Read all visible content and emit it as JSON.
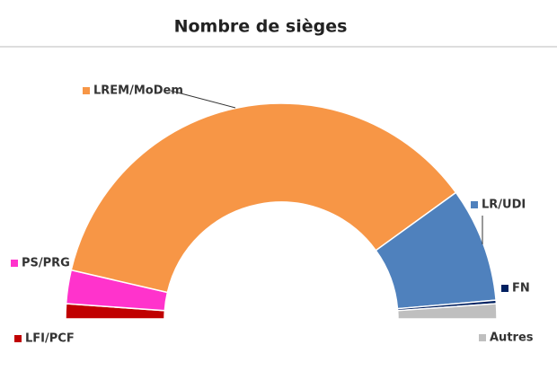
{
  "chart_data": {
    "type": "half-donut",
    "title": "Nombre de sièges",
    "categories": [
      "LFI/PCF",
      "PS/PRG",
      "LREM/MoDem",
      "LR/UDI",
      "FN",
      "Autres"
    ],
    "values": [
      13,
      29,
      420,
      99,
      3,
      13
    ],
    "colors": [
      "#c00000",
      "#ff33cc",
      "#f79646",
      "#4f81bd",
      "#002060",
      "#bfbfbf"
    ]
  }
}
